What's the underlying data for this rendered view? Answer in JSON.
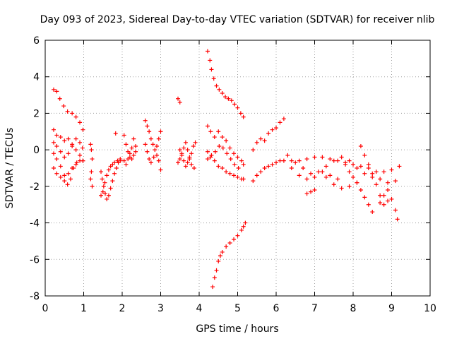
{
  "chart_data": {
    "type": "scatter",
    "title": "Day 093 of 2023, Sidereal Day-to-day VTEC variation (SDTVAR) for receiver nlib",
    "xlabel": "GPS time / hours",
    "ylabel": "SDTVAR / TECUs",
    "xlim": [
      0,
      10
    ],
    "ylim": [
      -8,
      6
    ],
    "x_ticks": [
      "0",
      "1",
      "2",
      "3",
      "4",
      "5",
      "6",
      "7",
      "8",
      "9",
      "10"
    ],
    "y_ticks": [
      "-8",
      "-6",
      "-4",
      "-2",
      "0",
      "2",
      "4",
      "6"
    ],
    "grid": true,
    "marker": "+",
    "color": "#ff0000",
    "series": [
      {
        "name": "s1",
        "points": [
          [
            0.22,
            3.3
          ],
          [
            0.3,
            3.2
          ],
          [
            0.38,
            2.8
          ],
          [
            0.48,
            2.4
          ],
          [
            0.58,
            2.1
          ],
          [
            0.7,
            2.0
          ],
          [
            0.8,
            1.8
          ],
          [
            0.9,
            1.5
          ],
          [
            0.98,
            1.1
          ]
        ]
      },
      {
        "name": "s2",
        "points": [
          [
            0.22,
            1.1
          ],
          [
            0.3,
            0.8
          ],
          [
            0.4,
            0.7
          ],
          [
            0.5,
            0.5
          ],
          [
            0.6,
            0.6
          ],
          [
            0.7,
            0.3
          ],
          [
            0.8,
            0.0
          ],
          [
            0.9,
            -0.3
          ],
          [
            0.98,
            -0.6
          ]
        ]
      },
      {
        "name": "s3",
        "points": [
          [
            0.22,
            0.4
          ],
          [
            0.3,
            0.2
          ],
          [
            0.4,
            -0.1
          ],
          [
            0.5,
            -0.4
          ],
          [
            0.6,
            -0.2
          ],
          [
            0.7,
            0.2
          ],
          [
            0.8,
            0.6
          ],
          [
            0.9,
            0.4
          ],
          [
            0.97,
            0.1
          ]
        ]
      },
      {
        "name": "s4",
        "points": [
          [
            0.22,
            -0.2
          ],
          [
            0.3,
            -0.5
          ],
          [
            0.4,
            -0.9
          ],
          [
            0.5,
            -1.4
          ],
          [
            0.58,
            -1.9
          ],
          [
            0.66,
            -1.6
          ],
          [
            0.74,
            -1.0
          ],
          [
            0.82,
            -0.7
          ],
          [
            0.9,
            -0.6
          ],
          [
            0.98,
            -0.6
          ]
        ]
      },
      {
        "name": "s5",
        "points": [
          [
            0.22,
            -1.0
          ],
          [
            0.3,
            -1.3
          ],
          [
            0.4,
            -1.5
          ],
          [
            0.5,
            -1.7
          ],
          [
            0.6,
            -1.3
          ],
          [
            0.7,
            -1.0
          ],
          [
            0.8,
            -0.8
          ]
        ]
      },
      {
        "name": "s6",
        "points": [
          [
            1.18,
            0.3
          ],
          [
            1.2,
            0.0
          ],
          [
            1.22,
            -0.5
          ],
          [
            1.2,
            -1.2
          ],
          [
            1.18,
            -1.6
          ],
          [
            1.22,
            -2.0
          ]
        ]
      },
      {
        "name": "s7",
        "points": [
          [
            1.45,
            -1.2
          ],
          [
            1.48,
            -1.6
          ],
          [
            1.52,
            -2.0
          ],
          [
            1.56,
            -2.4
          ],
          [
            1.6,
            -2.7
          ],
          [
            1.65,
            -2.5
          ],
          [
            1.7,
            -2.1
          ],
          [
            1.75,
            -1.7
          ],
          [
            1.8,
            -1.3
          ],
          [
            1.85,
            -1.0
          ],
          [
            1.9,
            -0.7
          ],
          [
            1.95,
            -0.5
          ]
        ]
      },
      {
        "name": "s8",
        "points": [
          [
            1.45,
            -2.5
          ],
          [
            1.5,
            -2.3
          ],
          [
            1.55,
            -1.8
          ],
          [
            1.6,
            -1.4
          ],
          [
            1.65,
            -1.1
          ],
          [
            1.7,
            -0.9
          ],
          [
            1.75,
            -0.8
          ],
          [
            1.8,
            -0.7
          ],
          [
            1.88,
            -0.6
          ],
          [
            1.95,
            -0.6
          ]
        ]
      },
      {
        "name": "s9",
        "points": [
          [
            1.83,
            0.9
          ],
          [
            2.05,
            0.8
          ],
          [
            2.1,
            0.3
          ],
          [
            2.15,
            -0.1
          ],
          [
            2.2,
            -0.4
          ],
          [
            2.25,
            0.1
          ],
          [
            2.3,
            0.6
          ],
          [
            2.35,
            0.2
          ]
        ]
      },
      {
        "name": "s10",
        "points": [
          [
            2.05,
            -0.6
          ],
          [
            2.1,
            -0.8
          ],
          [
            2.15,
            -0.5
          ],
          [
            2.2,
            -0.2
          ],
          [
            2.25,
            -0.5
          ],
          [
            2.3,
            -0.3
          ],
          [
            2.35,
            -0.1
          ]
        ]
      },
      {
        "name": "s11",
        "points": [
          [
            2.6,
            1.6
          ],
          [
            2.65,
            1.3
          ],
          [
            2.7,
            1.0
          ],
          [
            2.75,
            0.6
          ],
          [
            2.8,
            0.3
          ],
          [
            2.85,
            0.0
          ],
          [
            2.9,
            -0.3
          ],
          [
            2.95,
            -0.6
          ],
          [
            3.0,
            -1.1
          ]
        ]
      },
      {
        "name": "s12",
        "points": [
          [
            2.6,
            0.3
          ],
          [
            2.65,
            -0.1
          ],
          [
            2.7,
            -0.5
          ],
          [
            2.75,
            -0.7
          ],
          [
            2.82,
            -0.4
          ],
          [
            2.9,
            0.2
          ],
          [
            2.95,
            0.6
          ],
          [
            3.0,
            1.0
          ]
        ]
      },
      {
        "name": "s13",
        "points": [
          [
            3.45,
            2.8
          ],
          [
            3.5,
            2.6
          ]
        ]
      },
      {
        "name": "s14",
        "points": [
          [
            3.5,
            0.0
          ],
          [
            3.55,
            -0.3
          ],
          [
            3.6,
            -0.6
          ],
          [
            3.65,
            -0.9
          ],
          [
            3.7,
            -0.7
          ],
          [
            3.75,
            -0.4
          ],
          [
            3.8,
            -0.2
          ],
          [
            3.85,
            0.2
          ],
          [
            3.9,
            0.4
          ]
        ]
      },
      {
        "name": "s15",
        "points": [
          [
            3.45,
            -0.7
          ],
          [
            3.5,
            -0.5
          ],
          [
            3.55,
            -0.2
          ],
          [
            3.6,
            0.1
          ],
          [
            3.65,
            0.4
          ],
          [
            3.7,
            0.0
          ],
          [
            3.75,
            -0.5
          ],
          [
            3.8,
            -0.8
          ],
          [
            3.87,
            -1.0
          ]
        ]
      },
      {
        "name": "s16",
        "points": [
          [
            4.22,
            5.4
          ],
          [
            4.28,
            4.9
          ],
          [
            4.32,
            4.4
          ],
          [
            4.38,
            3.9
          ],
          [
            4.45,
            3.5
          ],
          [
            4.52,
            3.3
          ],
          [
            4.6,
            3.1
          ],
          [
            4.68,
            2.9
          ],
          [
            4.76,
            2.8
          ],
          [
            4.84,
            2.7
          ],
          [
            4.92,
            2.5
          ],
          [
            5.0,
            2.3
          ],
          [
            5.08,
            2.0
          ],
          [
            5.15,
            1.8
          ]
        ]
      },
      {
        "name": "s17",
        "points": [
          [
            4.22,
            1.3
          ],
          [
            4.3,
            1.0
          ],
          [
            4.4,
            0.7
          ],
          [
            4.5,
            1.0
          ],
          [
            4.6,
            0.7
          ],
          [
            4.7,
            0.5
          ],
          [
            4.8,
            0.1
          ],
          [
            4.9,
            -0.2
          ],
          [
            5.0,
            -0.4
          ],
          [
            5.1,
            -0.6
          ],
          [
            5.15,
            -0.8
          ]
        ]
      },
      {
        "name": "s18",
        "points": [
          [
            4.22,
            -0.1
          ],
          [
            4.3,
            -0.4
          ],
          [
            4.4,
            -0.6
          ],
          [
            4.5,
            -0.9
          ],
          [
            4.6,
            -1.0
          ],
          [
            4.7,
            -1.2
          ],
          [
            4.8,
            -1.3
          ],
          [
            4.9,
            -1.4
          ],
          [
            5.0,
            -1.5
          ],
          [
            5.1,
            -1.6
          ],
          [
            5.15,
            -1.6
          ]
        ]
      },
      {
        "name": "s19",
        "points": [
          [
            4.22,
            -0.5
          ],
          [
            4.32,
            -0.3
          ],
          [
            4.42,
            -0.1
          ],
          [
            4.52,
            0.2
          ],
          [
            4.62,
            0.1
          ],
          [
            4.72,
            -0.2
          ],
          [
            4.82,
            -0.5
          ],
          [
            4.92,
            -0.8
          ],
          [
            5.02,
            -1.0
          ]
        ]
      },
      {
        "name": "s20",
        "points": [
          [
            4.35,
            -7.5
          ],
          [
            4.4,
            -7.0
          ],
          [
            4.45,
            -6.6
          ],
          [
            4.5,
            -6.1
          ],
          [
            4.55,
            -5.8
          ],
          [
            4.6,
            -5.6
          ],
          [
            4.7,
            -5.3
          ],
          [
            4.8,
            -5.1
          ],
          [
            4.9,
            -4.9
          ],
          [
            5.0,
            -4.7
          ],
          [
            5.1,
            -4.4
          ],
          [
            5.15,
            -4.2
          ],
          [
            5.2,
            -4.0
          ]
        ]
      },
      {
        "name": "s21",
        "points": [
          [
            5.4,
            0.0
          ],
          [
            5.5,
            0.4
          ],
          [
            5.6,
            0.6
          ],
          [
            5.7,
            0.5
          ],
          [
            5.8,
            0.9
          ],
          [
            5.9,
            1.1
          ],
          [
            6.0,
            1.2
          ],
          [
            6.1,
            1.5
          ],
          [
            6.2,
            1.7
          ]
        ]
      },
      {
        "name": "s22",
        "points": [
          [
            5.4,
            -1.7
          ],
          [
            5.5,
            -1.4
          ],
          [
            5.6,
            -1.2
          ],
          [
            5.7,
            -1.0
          ],
          [
            5.8,
            -0.9
          ],
          [
            5.9,
            -0.8
          ],
          [
            6.0,
            -0.7
          ],
          [
            6.1,
            -0.6
          ],
          [
            6.2,
            -0.6
          ],
          [
            6.4,
            -0.6
          ],
          [
            6.6,
            -0.6
          ],
          [
            6.8,
            -0.5
          ],
          [
            7.0,
            -0.4
          ],
          [
            7.2,
            -0.4
          ],
          [
            7.4,
            -0.5
          ],
          [
            7.6,
            -0.6
          ],
          [
            7.8,
            -0.7
          ],
          [
            8.0,
            -0.8
          ],
          [
            8.2,
            -0.9
          ],
          [
            8.4,
            -1.0
          ],
          [
            8.6,
            -1.2
          ],
          [
            8.8,
            -1.2
          ],
          [
            9.0,
            -1.1
          ],
          [
            9.2,
            -0.9
          ]
        ]
      },
      {
        "name": "s23",
        "points": [
          [
            6.3,
            -0.3
          ],
          [
            6.5,
            -0.7
          ],
          [
            6.7,
            -1.0
          ],
          [
            6.9,
            -1.3
          ],
          [
            7.1,
            -1.2
          ],
          [
            7.3,
            -0.9
          ],
          [
            7.5,
            -0.6
          ],
          [
            7.7,
            -0.4
          ],
          [
            7.9,
            -0.6
          ],
          [
            8.1,
            -1.0
          ],
          [
            8.3,
            -1.3
          ],
          [
            8.5,
            -1.5
          ],
          [
            8.7,
            -1.6
          ],
          [
            8.9,
            -1.8
          ],
          [
            9.1,
            -1.7
          ]
        ]
      },
      {
        "name": "s24",
        "points": [
          [
            6.8,
            -2.4
          ],
          [
            6.9,
            -2.3
          ],
          [
            7.0,
            -2.2
          ]
        ]
      },
      {
        "name": "s25",
        "points": [
          [
            7.8,
            -0.8
          ],
          [
            7.9,
            -1.2
          ],
          [
            8.0,
            -1.5
          ],
          [
            8.1,
            -1.8
          ],
          [
            8.2,
            -2.2
          ],
          [
            8.3,
            -2.6
          ],
          [
            8.4,
            -3.0
          ],
          [
            8.5,
            -3.4
          ]
        ]
      },
      {
        "name": "s26",
        "points": [
          [
            8.2,
            0.2
          ],
          [
            8.3,
            -0.3
          ],
          [
            8.4,
            -0.8
          ],
          [
            8.5,
            -1.3
          ],
          [
            8.6,
            -1.9
          ],
          [
            8.7,
            -2.5
          ],
          [
            8.8,
            -3.0
          ],
          [
            8.9,
            -2.8
          ]
        ]
      },
      {
        "name": "s27",
        "points": [
          [
            8.7,
            -2.9
          ],
          [
            8.8,
            -2.5
          ],
          [
            8.9,
            -2.2
          ],
          [
            9.0,
            -2.7
          ],
          [
            9.1,
            -3.3
          ],
          [
            9.15,
            -3.8
          ]
        ]
      },
      {
        "name": "s28",
        "points": [
          [
            7.3,
            -1.5
          ],
          [
            7.5,
            -1.9
          ],
          [
            7.7,
            -2.1
          ],
          [
            7.9,
            -2.0
          ],
          [
            8.1,
            -1.8
          ]
        ]
      },
      {
        "name": "s29",
        "points": [
          [
            6.4,
            -1.0
          ],
          [
            6.6,
            -1.4
          ],
          [
            6.8,
            -1.6
          ],
          [
            7.0,
            -1.5
          ],
          [
            7.2,
            -1.2
          ],
          [
            7.4,
            -1.4
          ],
          [
            7.6,
            -1.6
          ]
        ]
      }
    ]
  }
}
